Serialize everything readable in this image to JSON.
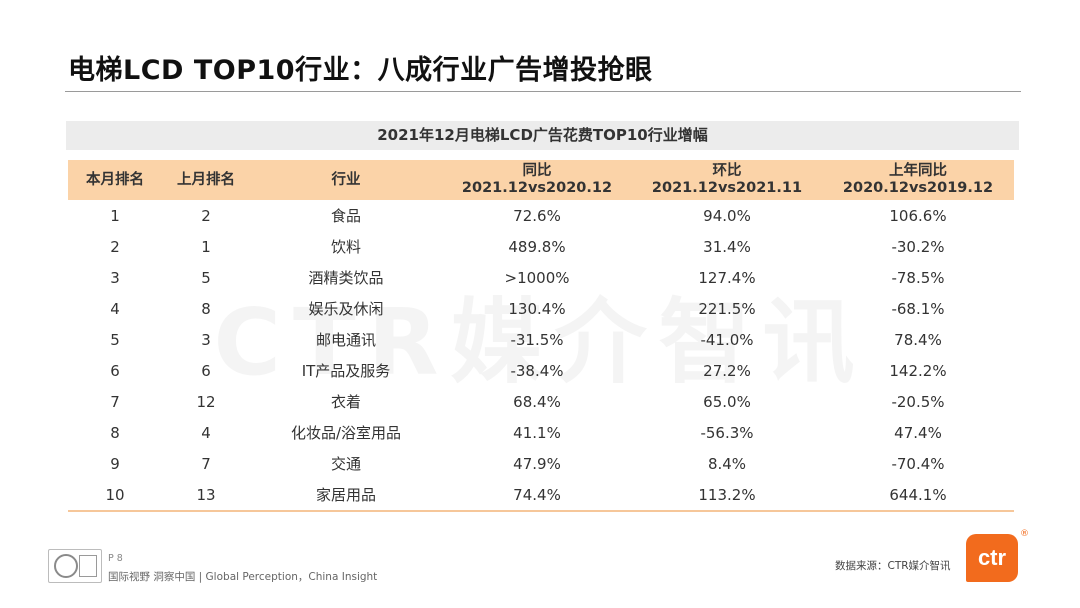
{
  "title": "电梯LCD TOP10行业：八成行业广告增投抢眼",
  "table_caption": "2021年12月电梯LCD广告花费TOP10行业增幅",
  "watermark": "CTR媒介智讯",
  "columns": [
    {
      "line1": "本月排名",
      "line2": ""
    },
    {
      "line1": "上月排名",
      "line2": ""
    },
    {
      "line1": "行业",
      "line2": ""
    },
    {
      "line1": "同比",
      "line2": "2021.12vs2020.12"
    },
    {
      "line1": "环比",
      "line2": "2021.12vs2021.11"
    },
    {
      "line1": "上年同比",
      "line2": "2020.12vs2019.12"
    }
  ],
  "rows": [
    {
      "rank": "1",
      "prev_rank": "2",
      "industry": "食品",
      "yoy": "72.6%",
      "mom": "94.0%",
      "prev_yoy": "106.6%"
    },
    {
      "rank": "2",
      "prev_rank": "1",
      "industry": "饮料",
      "yoy": "489.8%",
      "mom": "31.4%",
      "prev_yoy": "-30.2%"
    },
    {
      "rank": "3",
      "prev_rank": "5",
      "industry": "酒精类饮品",
      "yoy": ">1000%",
      "mom": "127.4%",
      "prev_yoy": "-78.5%"
    },
    {
      "rank": "4",
      "prev_rank": "8",
      "industry": "娱乐及休闲",
      "yoy": "130.4%",
      "mom": "221.5%",
      "prev_yoy": "-68.1%"
    },
    {
      "rank": "5",
      "prev_rank": "3",
      "industry": "邮电通讯",
      "yoy": "-31.5%",
      "mom": "-41.0%",
      "prev_yoy": "78.4%"
    },
    {
      "rank": "6",
      "prev_rank": "6",
      "industry": "IT产品及服务",
      "yoy": "-38.4%",
      "mom": "27.2%",
      "prev_yoy": "142.2%"
    },
    {
      "rank": "7",
      "prev_rank": "12",
      "industry": "衣着",
      "yoy": "68.4%",
      "mom": "65.0%",
      "prev_yoy": "-20.5%"
    },
    {
      "rank": "8",
      "prev_rank": "4",
      "industry": "化妆品/浴室用品",
      "yoy": "41.1%",
      "mom": "-56.3%",
      "prev_yoy": "47.4%"
    },
    {
      "rank": "9",
      "prev_rank": "7",
      "industry": "交通",
      "yoy": "47.9%",
      "mom": "8.4%",
      "prev_yoy": "-70.4%"
    },
    {
      "rank": "10",
      "prev_rank": "13",
      "industry": "家居用品",
      "yoy": "74.4%",
      "mom": "113.2%",
      "prev_yoy": "644.1%"
    }
  ],
  "footer": {
    "page": "P 8",
    "slogan": "国际视野  洞察中国 | Global Perception，China Insight",
    "source": "数据来源：CTR媒介智讯",
    "logo_text": "ctr",
    "registered_mark": "®"
  }
}
